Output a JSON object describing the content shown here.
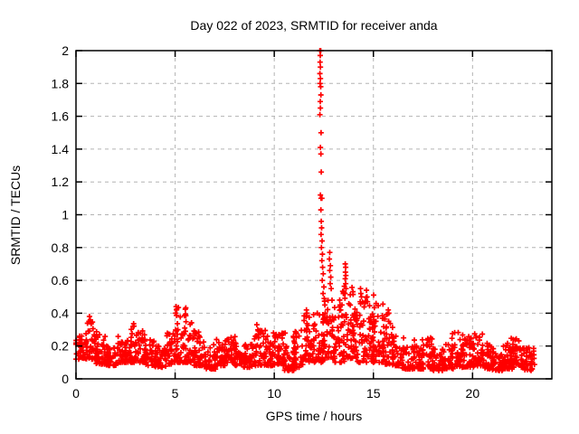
{
  "chart_data": {
    "type": "scatter",
    "title": "Day 022 of 2023, SRMTID for receiver anda",
    "xlabel": "GPS time / hours",
    "ylabel": "SRMTID / TECUs",
    "xlim": [
      0,
      24
    ],
    "ylim": [
      0,
      2
    ],
    "xticks": [
      0,
      5,
      10,
      15,
      20
    ],
    "xtick_labels": [
      "0",
      "5",
      "10",
      "15",
      "20"
    ],
    "yticks": [
      0,
      0.2,
      0.4,
      0.6,
      0.8,
      1,
      1.2,
      1.4,
      1.6,
      1.8,
      2
    ],
    "ytick_labels": [
      "0",
      "0.2",
      "0.4",
      "0.6",
      "0.8",
      "1",
      "1.2",
      "1.4",
      "1.6",
      "1.8",
      "2"
    ],
    "grid": true,
    "grid_color": "#b3b3b3",
    "legend": "none",
    "marker": "plus",
    "series": [
      {
        "name": "SRMTID",
        "color": "#ff0000"
      }
    ],
    "seed": 12345,
    "band_bins": [
      [
        0.0,
        0.5,
        0.12,
        0.27,
        40
      ],
      [
        0.5,
        1.0,
        0.12,
        0.38,
        42
      ],
      [
        1.0,
        1.5,
        0.09,
        0.28,
        40
      ],
      [
        1.5,
        2.0,
        0.08,
        0.22,
        38
      ],
      [
        2.0,
        2.5,
        0.1,
        0.26,
        40
      ],
      [
        2.5,
        3.0,
        0.1,
        0.34,
        42
      ],
      [
        3.0,
        3.5,
        0.1,
        0.3,
        40
      ],
      [
        3.5,
        4.0,
        0.08,
        0.24,
        38
      ],
      [
        4.0,
        4.5,
        0.07,
        0.2,
        36
      ],
      [
        4.5,
        5.0,
        0.09,
        0.28,
        40
      ],
      [
        5.0,
        5.5,
        0.1,
        0.44,
        44
      ],
      [
        5.5,
        6.0,
        0.1,
        0.37,
        42
      ],
      [
        6.0,
        6.5,
        0.08,
        0.29,
        40
      ],
      [
        6.5,
        7.0,
        0.06,
        0.21,
        36
      ],
      [
        7.0,
        7.5,
        0.08,
        0.24,
        38
      ],
      [
        7.5,
        8.0,
        0.1,
        0.28,
        40
      ],
      [
        8.0,
        8.5,
        0.08,
        0.22,
        38
      ],
      [
        8.5,
        9.0,
        0.07,
        0.21,
        36
      ],
      [
        9.0,
        9.5,
        0.08,
        0.3,
        40
      ],
      [
        9.5,
        10.0,
        0.08,
        0.26,
        40
      ],
      [
        10.0,
        10.5,
        0.09,
        0.29,
        42
      ],
      [
        10.5,
        11.0,
        0.05,
        0.22,
        38
      ],
      [
        11.0,
        11.5,
        0.07,
        0.3,
        42
      ],
      [
        11.5,
        12.0,
        0.1,
        0.4,
        46
      ],
      [
        12.0,
        12.5,
        0.1,
        0.42,
        40
      ],
      [
        12.5,
        13.0,
        0.12,
        0.5,
        44
      ],
      [
        13.0,
        13.5,
        0.1,
        0.46,
        44
      ],
      [
        13.5,
        14.0,
        0.12,
        0.58,
        44
      ],
      [
        14.0,
        14.5,
        0.1,
        0.46,
        44
      ],
      [
        14.5,
        15.0,
        0.1,
        0.52,
        46
      ],
      [
        15.0,
        15.5,
        0.1,
        0.48,
        44
      ],
      [
        15.5,
        16.0,
        0.09,
        0.4,
        42
      ],
      [
        16.0,
        16.5,
        0.08,
        0.27,
        40
      ],
      [
        16.5,
        17.0,
        0.06,
        0.2,
        36
      ],
      [
        17.0,
        17.5,
        0.06,
        0.24,
        38
      ],
      [
        17.5,
        18.0,
        0.06,
        0.27,
        40
      ],
      [
        18.0,
        18.5,
        0.05,
        0.2,
        38
      ],
      [
        18.5,
        19.0,
        0.06,
        0.22,
        38
      ],
      [
        19.0,
        19.5,
        0.07,
        0.29,
        40
      ],
      [
        19.5,
        20.0,
        0.07,
        0.27,
        40
      ],
      [
        20.0,
        20.5,
        0.08,
        0.29,
        40
      ],
      [
        20.5,
        21.0,
        0.06,
        0.22,
        38
      ],
      [
        21.0,
        21.5,
        0.05,
        0.18,
        36
      ],
      [
        21.5,
        22.0,
        0.06,
        0.22,
        38
      ],
      [
        22.0,
        22.5,
        0.07,
        0.26,
        40
      ],
      [
        22.5,
        23.1,
        0.05,
        0.2,
        44
      ]
    ],
    "spike_points": [
      [
        12.3,
        2.0
      ],
      [
        12.34,
        2.0
      ],
      [
        12.32,
        1.97
      ],
      [
        12.31,
        1.93
      ],
      [
        12.33,
        1.9
      ],
      [
        12.3,
        1.86
      ],
      [
        12.33,
        1.83
      ],
      [
        12.31,
        1.8
      ],
      [
        12.34,
        1.78
      ],
      [
        12.35,
        1.73
      ],
      [
        12.32,
        1.69
      ],
      [
        12.33,
        1.65
      ],
      [
        12.3,
        1.61
      ],
      [
        12.36,
        1.5
      ],
      [
        12.33,
        1.41
      ],
      [
        12.35,
        1.37
      ],
      [
        12.37,
        1.26
      ],
      [
        12.33,
        1.12
      ],
      [
        12.36,
        1.1
      ],
      [
        12.4,
        1.1
      ],
      [
        12.35,
        1.03
      ],
      [
        12.37,
        0.96
      ],
      [
        12.39,
        0.92
      ],
      [
        12.36,
        0.88
      ],
      [
        12.41,
        0.84
      ],
      [
        12.38,
        0.8
      ],
      [
        12.43,
        0.76
      ],
      [
        12.4,
        0.72
      ],
      [
        12.44,
        0.68
      ],
      [
        12.47,
        0.64
      ],
      [
        12.42,
        0.6
      ],
      [
        12.5,
        0.56
      ],
      [
        12.46,
        0.52
      ],
      [
        12.52,
        0.49
      ],
      [
        12.55,
        0.45
      ],
      [
        12.8,
        0.77
      ],
      [
        12.78,
        0.73
      ],
      [
        12.83,
        0.69
      ],
      [
        12.8,
        0.66
      ],
      [
        12.85,
        0.62
      ],
      [
        12.82,
        0.58
      ],
      [
        12.87,
        0.55
      ],
      [
        13.58,
        0.7
      ],
      [
        13.6,
        0.68
      ],
      [
        13.59,
        0.65
      ],
      [
        13.61,
        0.63
      ],
      [
        13.58,
        0.61
      ],
      [
        13.6,
        0.58
      ],
      [
        13.62,
        0.55
      ],
      [
        13.57,
        0.52
      ],
      [
        13.3,
        0.48
      ],
      [
        13.32,
        0.45
      ],
      [
        13.35,
        0.42
      ],
      [
        14.35,
        0.55
      ],
      [
        14.37,
        0.52
      ],
      [
        14.4,
        0.5
      ],
      [
        14.33,
        0.47
      ],
      [
        14.65,
        0.54
      ],
      [
        14.68,
        0.5
      ],
      [
        14.7,
        0.47
      ],
      [
        5.05,
        0.44
      ],
      [
        5.07,
        0.42
      ],
      [
        5.03,
        0.4
      ],
      [
        0.68,
        0.38
      ],
      [
        0.72,
        0.36
      ],
      [
        11.62,
        0.42
      ],
      [
        11.65,
        0.4
      ],
      [
        11.6,
        0.38
      ],
      [
        9.12,
        0.33
      ],
      [
        15.75,
        0.42
      ],
      [
        15.78,
        0.4
      ]
    ]
  }
}
